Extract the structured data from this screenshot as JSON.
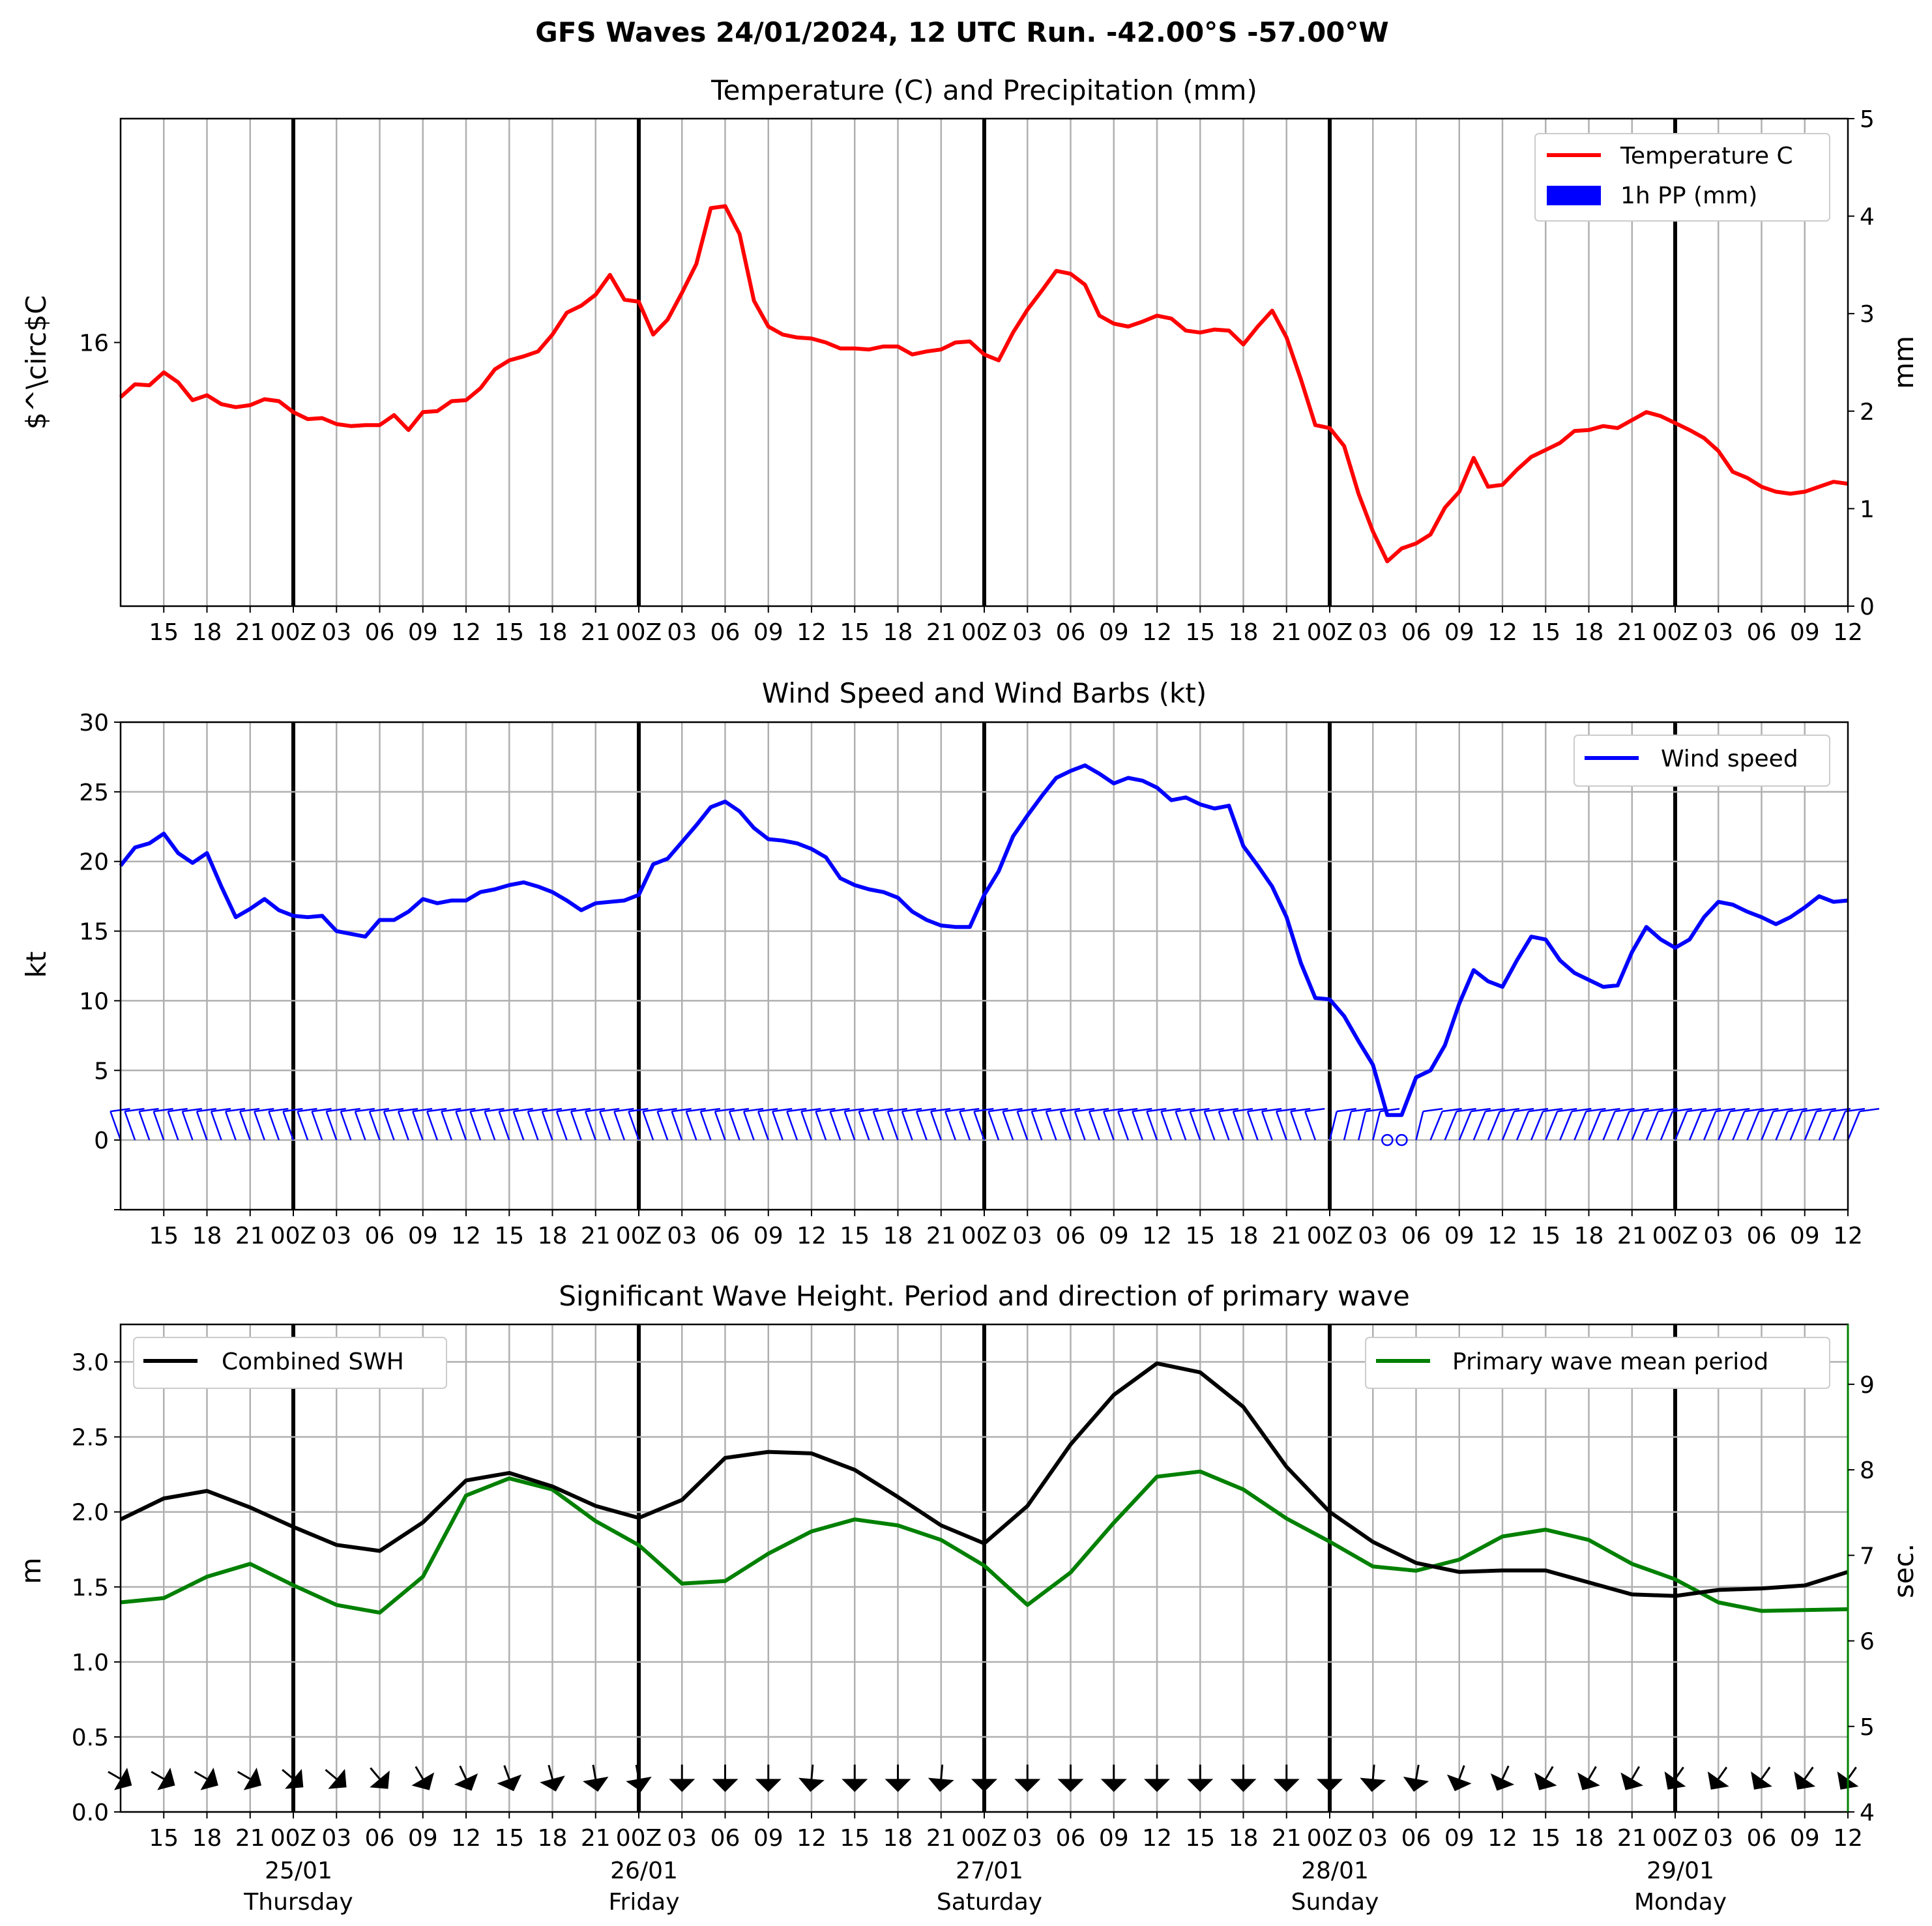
{
  "suptitle": "GFS Waves 24/01/2024, 12 UTC Run. -42.00°S -57.00°W",
  "colors": {
    "temperature": "#ff0000",
    "precipitation": "#0000ff",
    "wind": "#0000ff",
    "swh": "#000000",
    "period": "#008000",
    "grid": "#b0b0b0"
  },
  "x_axis": {
    "hours_labels": [
      "15",
      "18",
      "21",
      "00Z",
      "03",
      "06",
      "09",
      "12"
    ],
    "days": [
      {
        "date": "25/01",
        "weekday": "Thursday"
      },
      {
        "date": "26/01",
        "weekday": "Friday"
      },
      {
        "date": "27/01",
        "weekday": "Saturday"
      },
      {
        "date": "28/01",
        "weekday": "Sunday"
      },
      {
        "date": "29/01",
        "weekday": "Monday"
      }
    ]
  },
  "chart_data": [
    {
      "type": "line",
      "title": "Temperature (C) and Precipitation (mm)",
      "ylabel": "$^\\circ$C",
      "ylabel_right": "mm",
      "x_range_hours": [
        12,
        132
      ],
      "ylim_right": [
        0,
        5
      ],
      "yticks_left": [
        16
      ],
      "yticks_right": [
        0,
        1,
        2,
        3,
        4,
        5
      ],
      "legend": [
        "Temperature C",
        "1h PP (mm)"
      ],
      "legend_position": "upper right",
      "series": [
        {
          "name": "Temperature C",
          "x": [
            12,
            13,
            14,
            15,
            16,
            17,
            18,
            19,
            20,
            21,
            22,
            23,
            24,
            25,
            26,
            27,
            28,
            29,
            30,
            31,
            32,
            33,
            34,
            35,
            36,
            37,
            38,
            39,
            40,
            41,
            42,
            43,
            44,
            45,
            46,
            47,
            48,
            49,
            50,
            51,
            52,
            53,
            54,
            55,
            56,
            57,
            58,
            59,
            60,
            61,
            62,
            63,
            64,
            65,
            66,
            67,
            68,
            69,
            70,
            71,
            72,
            73,
            74,
            75,
            76,
            77,
            78,
            79,
            80,
            81,
            82,
            83,
            84,
            85,
            86,
            87,
            88,
            89,
            90,
            91,
            92,
            93,
            94,
            95,
            96,
            97,
            98,
            99,
            100,
            101,
            102,
            103,
            104,
            105,
            106,
            107,
            108,
            109,
            110,
            111,
            112,
            113,
            114,
            115,
            116,
            117,
            118,
            119,
            120,
            121,
            122,
            123,
            124,
            125,
            126,
            127,
            128,
            129,
            130,
            131,
            132
          ],
          "values": [
            15.45,
            15.58,
            15.57,
            15.7,
            15.6,
            15.42,
            15.47,
            15.38,
            15.35,
            15.37,
            15.43,
            15.41,
            15.3,
            15.23,
            15.24,
            15.18,
            15.16,
            15.17,
            15.17,
            15.27,
            15.12,
            15.3,
            15.31,
            15.41,
            15.42,
            15.54,
            15.73,
            15.82,
            15.86,
            15.91,
            16.08,
            16.3,
            16.37,
            16.48,
            16.68,
            16.43,
            16.41,
            16.08,
            16.23,
            16.5,
            16.79,
            17.35,
            17.37,
            17.09,
            16.42,
            16.16,
            16.08,
            16.05,
            16.04,
            16.0,
            15.94,
            15.94,
            15.93,
            15.96,
            15.96,
            15.88,
            15.91,
            15.93,
            16.0,
            16.01,
            15.88,
            15.82,
            16.1,
            16.33,
            16.52,
            16.72,
            16.69,
            16.58,
            16.27,
            16.19,
            16.16,
            16.21,
            16.27,
            16.24,
            16.12,
            16.1,
            16.13,
            16.12,
            15.98,
            16.16,
            16.32,
            16.05,
            15.63,
            15.17,
            15.14,
            14.96,
            14.48,
            14.1,
            13.8,
            13.93,
            13.98,
            14.07,
            14.34,
            14.5,
            14.84,
            14.55,
            14.57,
            14.72,
            14.85,
            14.92,
            14.99,
            15.11,
            15.12,
            15.16,
            15.14,
            15.22,
            15.3,
            15.26,
            15.19,
            15.12,
            15.04,
            14.91,
            14.7,
            14.64,
            14.55,
            14.5,
            14.48,
            14.5,
            14.55,
            14.6,
            14.58
          ]
        },
        {
          "name": "1h PP (mm)",
          "x": [],
          "values": []
        }
      ]
    },
    {
      "type": "line",
      "title": "Wind Speed and Wind Barbs (kt)",
      "ylabel": "kt",
      "x_range_hours": [
        12,
        132
      ],
      "ylim": [
        -5,
        30
      ],
      "yticks": [
        0,
        5,
        10,
        15,
        20,
        25,
        30
      ],
      "legend": [
        "Wind speed"
      ],
      "legend_position": "upper right",
      "series": [
        {
          "name": "Wind speed",
          "x": [
            12,
            13,
            14,
            15,
            16,
            17,
            18,
            19,
            20,
            21,
            22,
            23,
            24,
            25,
            26,
            27,
            28,
            29,
            30,
            31,
            32,
            33,
            34,
            35,
            36,
            37,
            38,
            39,
            40,
            41,
            42,
            43,
            44,
            45,
            46,
            47,
            48,
            49,
            50,
            51,
            52,
            53,
            54,
            55,
            56,
            57,
            58,
            59,
            60,
            61,
            62,
            63,
            64,
            65,
            66,
            67,
            68,
            69,
            70,
            71,
            72,
            73,
            74,
            75,
            76,
            77,
            78,
            79,
            80,
            81,
            82,
            83,
            84,
            85,
            86,
            87,
            88,
            89,
            90,
            91,
            92,
            93,
            94,
            95,
            96,
            97,
            98,
            99,
            100,
            101,
            102,
            103,
            104,
            105,
            106,
            107,
            108,
            109,
            110,
            111,
            112,
            113,
            114,
            115,
            116,
            117,
            118,
            119,
            120,
            121,
            122,
            123,
            124,
            125,
            126,
            127,
            128,
            129,
            130,
            131,
            132
          ],
          "values": [
            19.7,
            21.0,
            21.3,
            22.0,
            20.6,
            19.9,
            20.6,
            18.2,
            16.0,
            16.6,
            17.3,
            16.5,
            16.1,
            16.0,
            16.1,
            15.0,
            14.8,
            14.6,
            15.8,
            15.8,
            16.4,
            17.3,
            17.0,
            17.2,
            17.2,
            17.8,
            18.0,
            18.3,
            18.5,
            18.2,
            17.8,
            17.2,
            16.5,
            17.0,
            17.1,
            17.2,
            17.6,
            19.8,
            20.2,
            21.4,
            22.6,
            23.9,
            24.3,
            23.6,
            22.4,
            21.6,
            21.5,
            21.3,
            20.9,
            20.3,
            18.8,
            18.3,
            18.0,
            17.8,
            17.4,
            16.4,
            15.8,
            15.4,
            15.3,
            15.3,
            17.6,
            19.3,
            21.8,
            23.3,
            24.7,
            26.0,
            26.5,
            26.9,
            26.3,
            25.6,
            26.0,
            25.8,
            25.3,
            24.4,
            24.6,
            24.1,
            23.8,
            24.0,
            21.1,
            19.7,
            18.2,
            16.0,
            12.7,
            10.2,
            10.1,
            8.9,
            7.1,
            5.4,
            1.8,
            1.8,
            4.5,
            5.0,
            6.8,
            9.8,
            12.2,
            11.4,
            11.0,
            12.9,
            14.6,
            14.4,
            12.9,
            12.0,
            11.5,
            11.0,
            11.1,
            13.5,
            15.3,
            14.4,
            13.8,
            14.4,
            16.0,
            17.1,
            16.9,
            16.4,
            16.0,
            15.5,
            16.0,
            16.7,
            17.5,
            17.1,
            17.2
          ]
        }
      ]
    },
    {
      "type": "line",
      "title": "Significant Wave Height. Period and direction of primary wave",
      "ylabel": "m",
      "ylabel_right": "sec.",
      "x_range_hours": [
        12,
        132
      ],
      "ylim": [
        0,
        3.25
      ],
      "ylim_right": [
        4,
        9.7
      ],
      "yticks": [
        0.0,
        0.5,
        1.0,
        1.5,
        2.0,
        2.5,
        3.0
      ],
      "yticks_right": [
        4,
        5,
        6,
        7,
        8,
        9
      ],
      "legend_left": [
        "Combined SWH"
      ],
      "legend_right": [
        "Primary wave mean period"
      ],
      "legend_positions": [
        "upper left",
        "upper right"
      ],
      "series": [
        {
          "name": "Combined SWH",
          "x": [
            12,
            15,
            18,
            21,
            24,
            27,
            30,
            33,
            36,
            39,
            42,
            45,
            48,
            51,
            54,
            57,
            60,
            63,
            66,
            69,
            72,
            75,
            78,
            81,
            84,
            87,
            90,
            93,
            96,
            99,
            102,
            105,
            108,
            111,
            114,
            117,
            120,
            123,
            126,
            129,
            132
          ],
          "values": [
            1.95,
            2.09,
            2.14,
            2.03,
            1.9,
            1.78,
            1.74,
            1.93,
            2.21,
            2.26,
            2.17,
            2.04,
            1.96,
            2.08,
            2.36,
            2.4,
            2.39,
            2.28,
            2.1,
            1.91,
            1.79,
            2.04,
            2.45,
            2.78,
            2.99,
            2.93,
            2.7,
            2.3,
            2.0,
            1.8,
            1.66,
            1.6,
            1.61,
            1.61,
            1.53,
            1.45,
            1.44,
            1.48,
            1.49,
            1.51,
            1.6
          ]
        },
        {
          "name": "Primary wave mean period",
          "x": [
            12,
            15,
            18,
            21,
            24,
            27,
            30,
            33,
            36,
            39,
            42,
            45,
            48,
            51,
            54,
            57,
            60,
            63,
            66,
            69,
            72,
            75,
            78,
            81,
            84,
            87,
            90,
            93,
            96,
            99,
            102,
            105,
            108,
            111,
            114,
            117,
            120,
            123,
            126,
            129,
            132
          ],
          "values": [
            6.45,
            6.5,
            6.75,
            6.9,
            6.65,
            6.42,
            6.33,
            6.75,
            7.7,
            7.9,
            7.77,
            7.4,
            7.12,
            6.67,
            6.7,
            7.02,
            7.28,
            7.42,
            7.35,
            7.18,
            6.88,
            6.42,
            6.8,
            7.38,
            7.92,
            7.98,
            7.77,
            7.43,
            7.16,
            6.87,
            6.82,
            6.95,
            7.22,
            7.3,
            7.18,
            6.9,
            6.72,
            6.45,
            6.35,
            6.36,
            6.37
          ]
        }
      ],
      "wave_direction_arrows_x": [
        12,
        15,
        18,
        21,
        24,
        27,
        30,
        33,
        36,
        39,
        42,
        45,
        48,
        51,
        54,
        57,
        60,
        63,
        66,
        69,
        72,
        75,
        78,
        81,
        84,
        87,
        90,
        93,
        96,
        99,
        102,
        105,
        108,
        111,
        114,
        117,
        120,
        123,
        126,
        129,
        132
      ],
      "wave_direction_arrows_deg": [
        120,
        120,
        120,
        120,
        130,
        130,
        140,
        150,
        155,
        160,
        165,
        170,
        170,
        180,
        180,
        180,
        185,
        180,
        180,
        185,
        180,
        180,
        180,
        180,
        180,
        180,
        180,
        180,
        180,
        185,
        190,
        200,
        205,
        210,
        210,
        210,
        215,
        215,
        215,
        215,
        215
      ]
    }
  ]
}
